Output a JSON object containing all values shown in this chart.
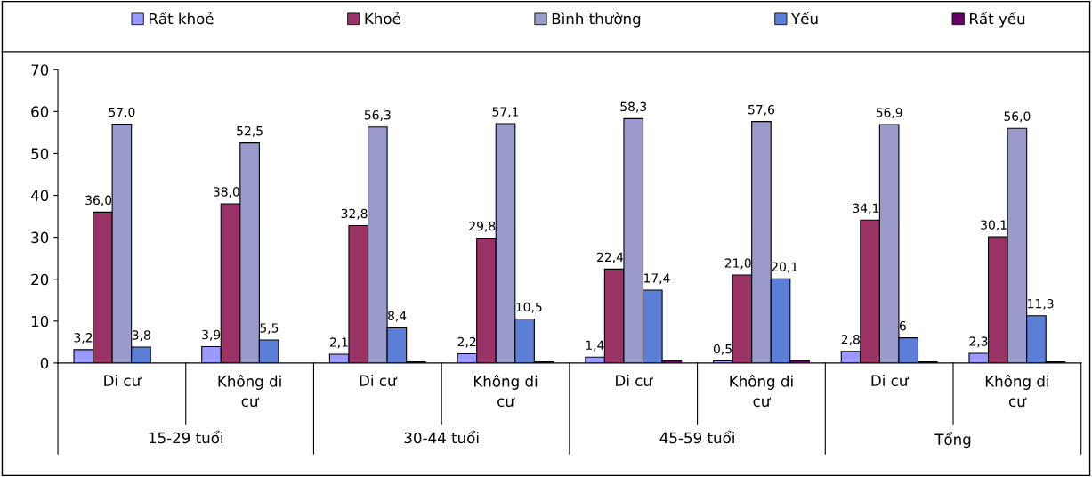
{
  "chart_data": {
    "type": "bar",
    "categories": [
      "Di cư",
      "Không di\ncư",
      "Di cư",
      "Không di\ncư",
      "Di cư",
      "Không di\ncư",
      "Di cư",
      "Không di\ncư"
    ],
    "annotations": [
      "15-29 tuổi",
      "30-44 tuổi",
      "45-59 tuổi",
      "Tổng"
    ],
    "series": [
      {
        "name": "Rất khoẻ",
        "color": "#9999ff",
        "values": [
          3.2,
          3.9,
          2.1,
          2.2,
          1.4,
          0.5,
          2.8,
          2.3
        ],
        "value_labels": [
          "3,2",
          "3,9",
          "2,1",
          "2,2",
          "1,4",
          "0,5",
          "2,8",
          "2,3"
        ]
      },
      {
        "name": "Khoẻ",
        "color": "#993366",
        "values": [
          36.0,
          38.0,
          32.8,
          29.8,
          22.4,
          21.0,
          34.1,
          30.1
        ],
        "value_labels": [
          "36,0",
          "38,0",
          "32,8",
          "29,8",
          "22,4",
          "21,0",
          "34,1",
          "30,1"
        ]
      },
      {
        "name": "Bình thường",
        "color": "#9a9acc",
        "values": [
          57.0,
          52.5,
          56.3,
          57.1,
          58.3,
          57.6,
          56.9,
          56.0
        ],
        "value_labels": [
          "57,0",
          "52,5",
          "56,3",
          "57,1",
          "58,3",
          "57,6",
          "56,9",
          "56,0"
        ]
      },
      {
        "name": "Yếu",
        "color": "#5b7fd6",
        "values": [
          3.8,
          5.5,
          8.4,
          10.5,
          17.4,
          20.1,
          6,
          11.3
        ],
        "value_labels": [
          "3,8",
          "5,5",
          "8,4",
          "10,5",
          "17,4",
          "20,1",
          "6",
          "11,3"
        ]
      },
      {
        "name": "Rất yếu",
        "color": "#660066",
        "values": [
          null,
          null,
          0.3,
          0.3,
          0.6,
          0.6,
          0.3,
          0.3
        ]
      }
    ],
    "ylim": [
      0,
      70
    ],
    "yticks": [
      0,
      10,
      20,
      30,
      40,
      50,
      60,
      70
    ],
    "grid": false,
    "legend": "top"
  }
}
